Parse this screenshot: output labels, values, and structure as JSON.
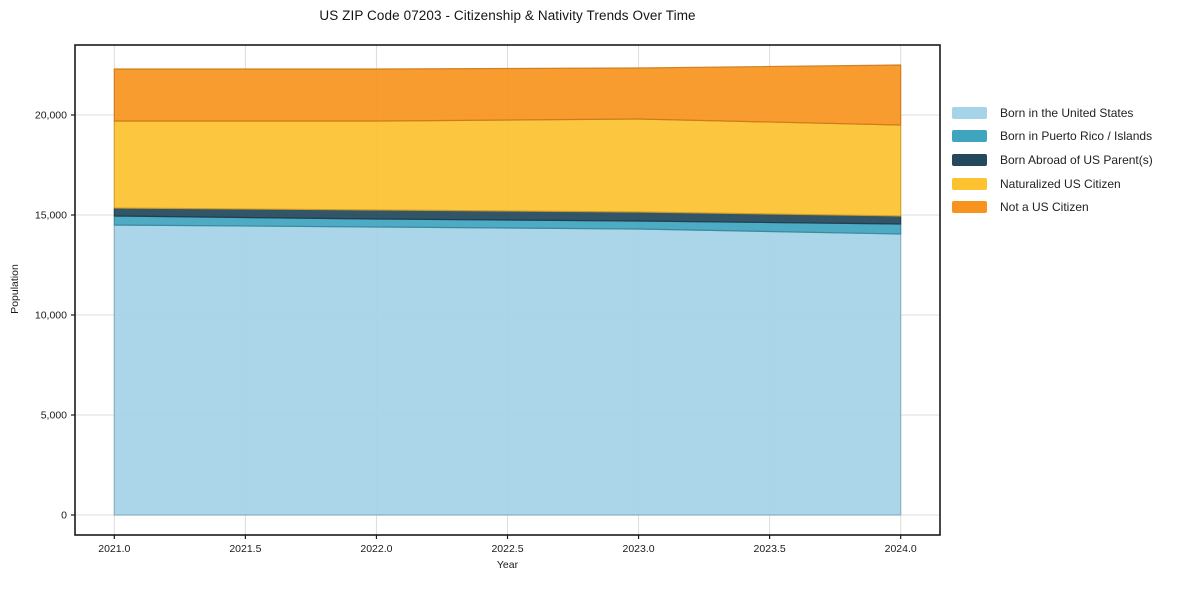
{
  "chart_data": {
    "type": "area",
    "stacked": true,
    "title": "US ZIP Code 07203 - Citizenship & Nativity Trends Over Time",
    "xlabel": "Year",
    "ylabel": "Population",
    "x": [
      2021,
      2022,
      2023,
      2024
    ],
    "series": [
      {
        "name": "Born in the United States",
        "color": "#A5D3E8",
        "values": [
          14500,
          14400,
          14300,
          14050
        ]
      },
      {
        "name": "Born in Puerto Rico / Islands",
        "color": "#3FA5BE",
        "values": [
          450,
          400,
          400,
          500
        ]
      },
      {
        "name": "Born Abroad of US Parent(s)",
        "color": "#24485C",
        "values": [
          400,
          450,
          450,
          400
        ]
      },
      {
        "name": "Naturalized US Citizen",
        "color": "#FCC22F",
        "values": [
          4350,
          4450,
          4650,
          4550
        ]
      },
      {
        "name": "Not a US Citizen",
        "color": "#F7941F",
        "values": [
          2600,
          2600,
          2550,
          3000
        ]
      }
    ],
    "stack_totals": [
      22300,
      22300,
      22350,
      22500
    ],
    "x_ticks": {
      "values": [
        2021,
        2021.5,
        2022,
        2022.5,
        2023,
        2023.5,
        2024
      ],
      "labels": [
        "2021.0",
        "2021.5",
        "2022.0",
        "2022.5",
        "2023.0",
        "2023.5",
        "2024.0"
      ]
    },
    "y_ticks": {
      "values": [
        0,
        5000,
        10000,
        15000,
        20000
      ],
      "labels": [
        "0",
        "5,000",
        "10,000",
        "15,000",
        "20,000"
      ]
    },
    "xlim": [
      2020.85,
      2024.15
    ],
    "ylim": [
      -1000,
      23500
    ],
    "grid": true,
    "grid_color": "#dcdcdc",
    "frame_color": "#1a1a1a",
    "legend_position": "right"
  }
}
